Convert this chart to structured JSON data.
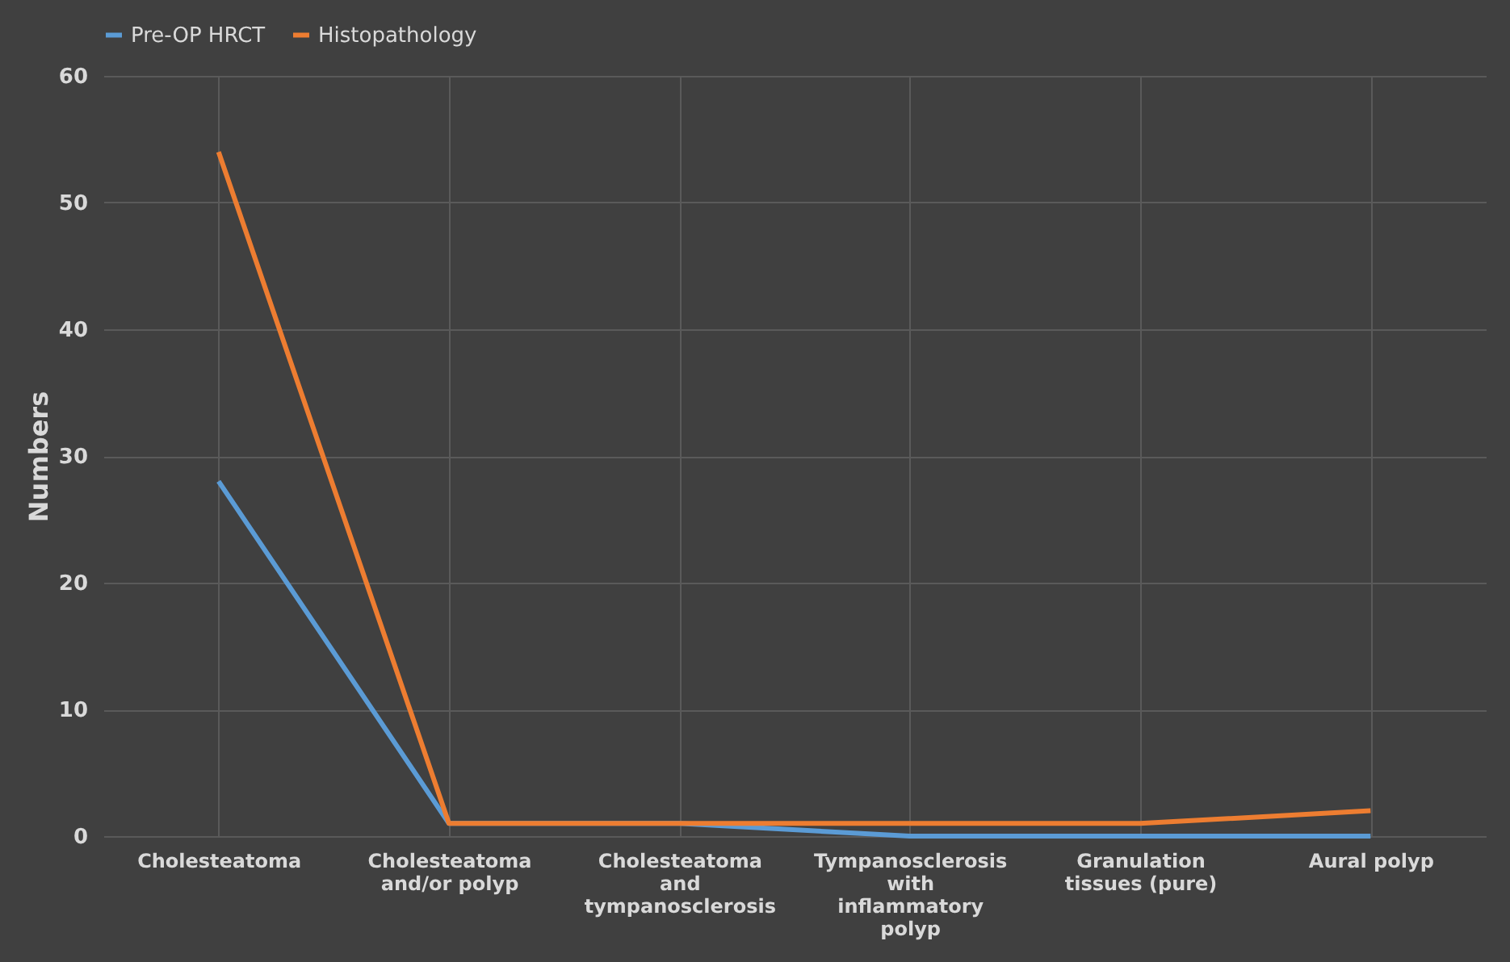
{
  "chart_data": {
    "type": "line",
    "ylabel": "Numbers",
    "categories": [
      "Cholesteatoma",
      "Cholesteatoma and/or polyp",
      "Cholesteatoma and tympanosclerosis",
      "Tympanosclerosis with inflammatory polyp",
      "Granulation tissues (pure)",
      "Aural polyp"
    ],
    "series": [
      {
        "name": "Pre-OP HRCT",
        "color": "#5b9bd5",
        "values": [
          28,
          1,
          1,
          0,
          0,
          0
        ]
      },
      {
        "name": "Histopathology",
        "color": "#ed7d31",
        "values": [
          54,
          1,
          1,
          1,
          1,
          2
        ]
      }
    ],
    "ylim": [
      0,
      60
    ],
    "yticks": [
      0,
      10,
      20,
      30,
      40,
      50,
      60
    ],
    "grid": true,
    "legend": "top",
    "marker": "none",
    "line_style": "solid"
  }
}
